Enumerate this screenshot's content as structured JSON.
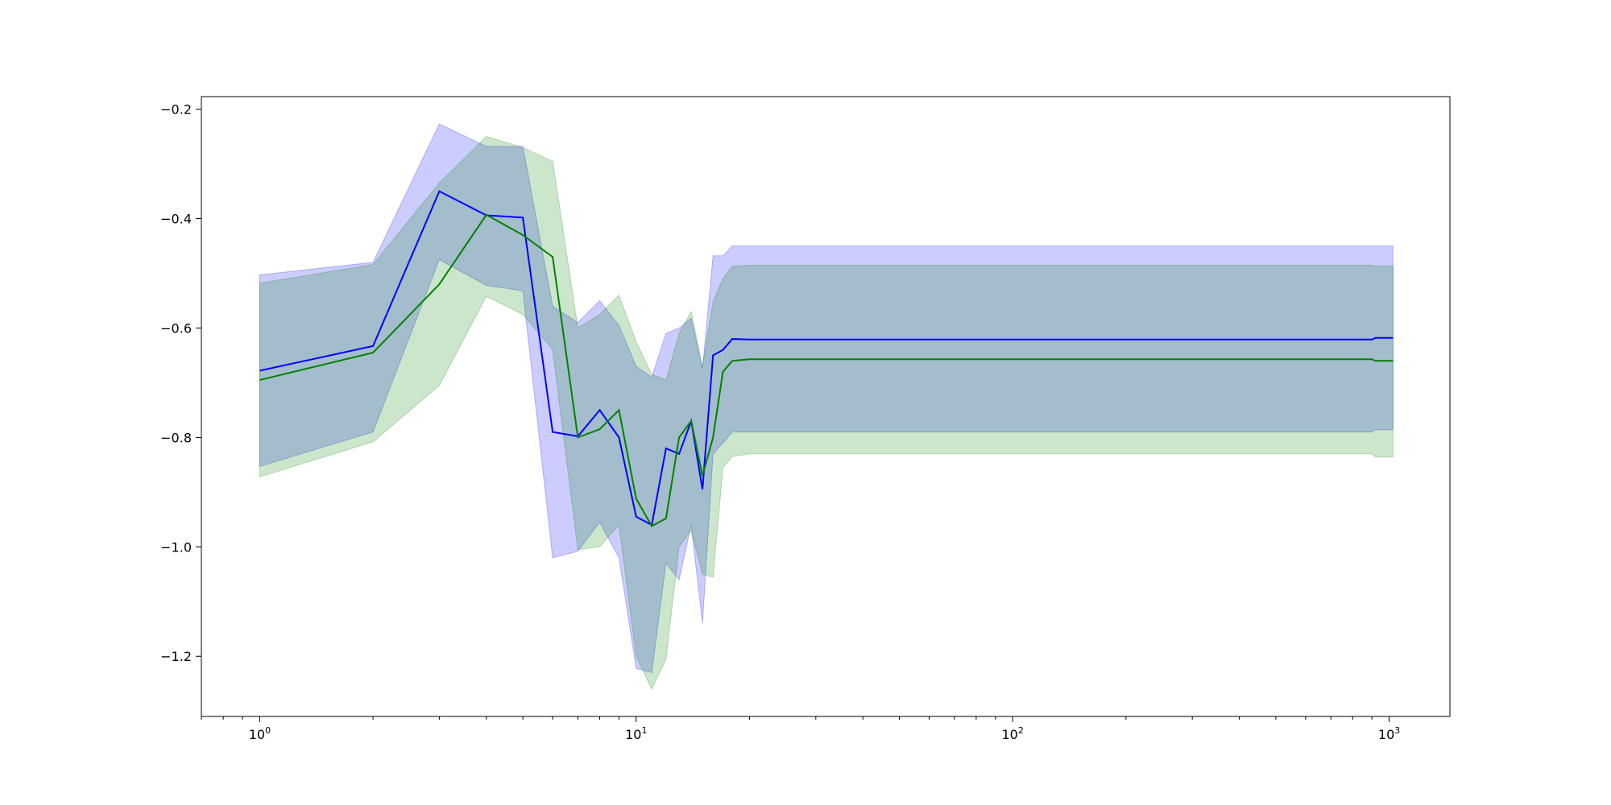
{
  "chart_data": {
    "type": "line",
    "title": "",
    "xlabel": "",
    "ylabel": "",
    "xscale": "log",
    "xlim": [
      0.7,
      1450
    ],
    "ylim": [
      -1.31,
      -0.177
    ],
    "grid": false,
    "legend": "none",
    "x_ticks": [
      {
        "value": 1,
        "base": "10",
        "exp": "0"
      },
      {
        "value": 10,
        "base": "10",
        "exp": "1"
      },
      {
        "value": 100,
        "base": "10",
        "exp": "2"
      },
      {
        "value": 1000,
        "base": "10",
        "exp": "3"
      }
    ],
    "y_ticks": [
      {
        "value": -0.2,
        "label": "−0.2"
      },
      {
        "value": -0.4,
        "label": "−0.4"
      },
      {
        "value": -0.6,
        "label": "−0.6"
      },
      {
        "value": -0.8,
        "label": "−0.8"
      },
      {
        "value": -1.0,
        "label": "−1.0"
      },
      {
        "value": -1.2,
        "label": "−1.2"
      }
    ],
    "series": [
      {
        "color": "#0000ff",
        "band_color": "#0000ff",
        "x": [
          1,
          2,
          3,
          4,
          5,
          6,
          7,
          8,
          9,
          10,
          11,
          12,
          13,
          14,
          15,
          16,
          17,
          18,
          20,
          900,
          920,
          1024
        ],
        "y": [
          -0.678,
          -0.633,
          -0.35,
          -0.394,
          -0.398,
          -0.79,
          -0.798,
          -0.75,
          -0.8,
          -0.945,
          -0.96,
          -0.82,
          -0.83,
          -0.77,
          -0.895,
          -0.65,
          -0.64,
          -0.62,
          -0.621,
          -0.621,
          -0.618,
          -0.618
        ],
        "upper": [
          -0.503,
          -0.48,
          -0.227,
          -0.268,
          -0.268,
          -0.56,
          -0.59,
          -0.55,
          -0.595,
          -0.67,
          -0.69,
          -0.61,
          -0.6,
          -0.582,
          -0.675,
          -0.468,
          -0.468,
          -0.45,
          -0.45,
          -0.45,
          -0.45,
          -0.45
        ],
        "lower": [
          -0.853,
          -0.79,
          -0.475,
          -0.522,
          -0.532,
          -1.02,
          -1.008,
          -0.955,
          -1.02,
          -1.222,
          -1.23,
          -1.03,
          -1.06,
          -0.96,
          -1.14,
          -0.83,
          -0.81,
          -0.79,
          -0.79,
          -0.79,
          -0.786,
          -0.786
        ]
      },
      {
        "color": "#008000",
        "band_color": "#008000",
        "x": [
          1,
          2,
          3,
          4,
          5,
          6,
          7,
          8,
          9,
          10,
          11,
          12,
          13,
          14,
          15,
          16,
          17,
          18,
          20,
          900,
          920,
          1024
        ],
        "y": [
          -0.695,
          -0.645,
          -0.52,
          -0.393,
          -0.43,
          -0.47,
          -0.8,
          -0.785,
          -0.75,
          -0.912,
          -0.962,
          -0.948,
          -0.8,
          -0.77,
          -0.87,
          -0.8,
          -0.68,
          -0.66,
          -0.657,
          -0.657,
          -0.66,
          -0.66
        ],
        "upper": [
          -0.518,
          -0.484,
          -0.335,
          -0.25,
          -0.27,
          -0.295,
          -0.6,
          -0.575,
          -0.54,
          -0.625,
          -0.685,
          -0.695,
          -0.61,
          -0.57,
          -0.67,
          -0.552,
          -0.51,
          -0.487,
          -0.485,
          -0.485,
          -0.487,
          -0.487
        ],
        "lower": [
          -0.872,
          -0.808,
          -0.705,
          -0.542,
          -0.575,
          -0.64,
          -1.005,
          -1.0,
          -0.96,
          -1.2,
          -1.26,
          -1.205,
          -1.0,
          -0.97,
          -1.05,
          -1.055,
          -0.855,
          -0.835,
          -0.83,
          -0.83,
          -0.836,
          -0.836
        ]
      }
    ]
  }
}
